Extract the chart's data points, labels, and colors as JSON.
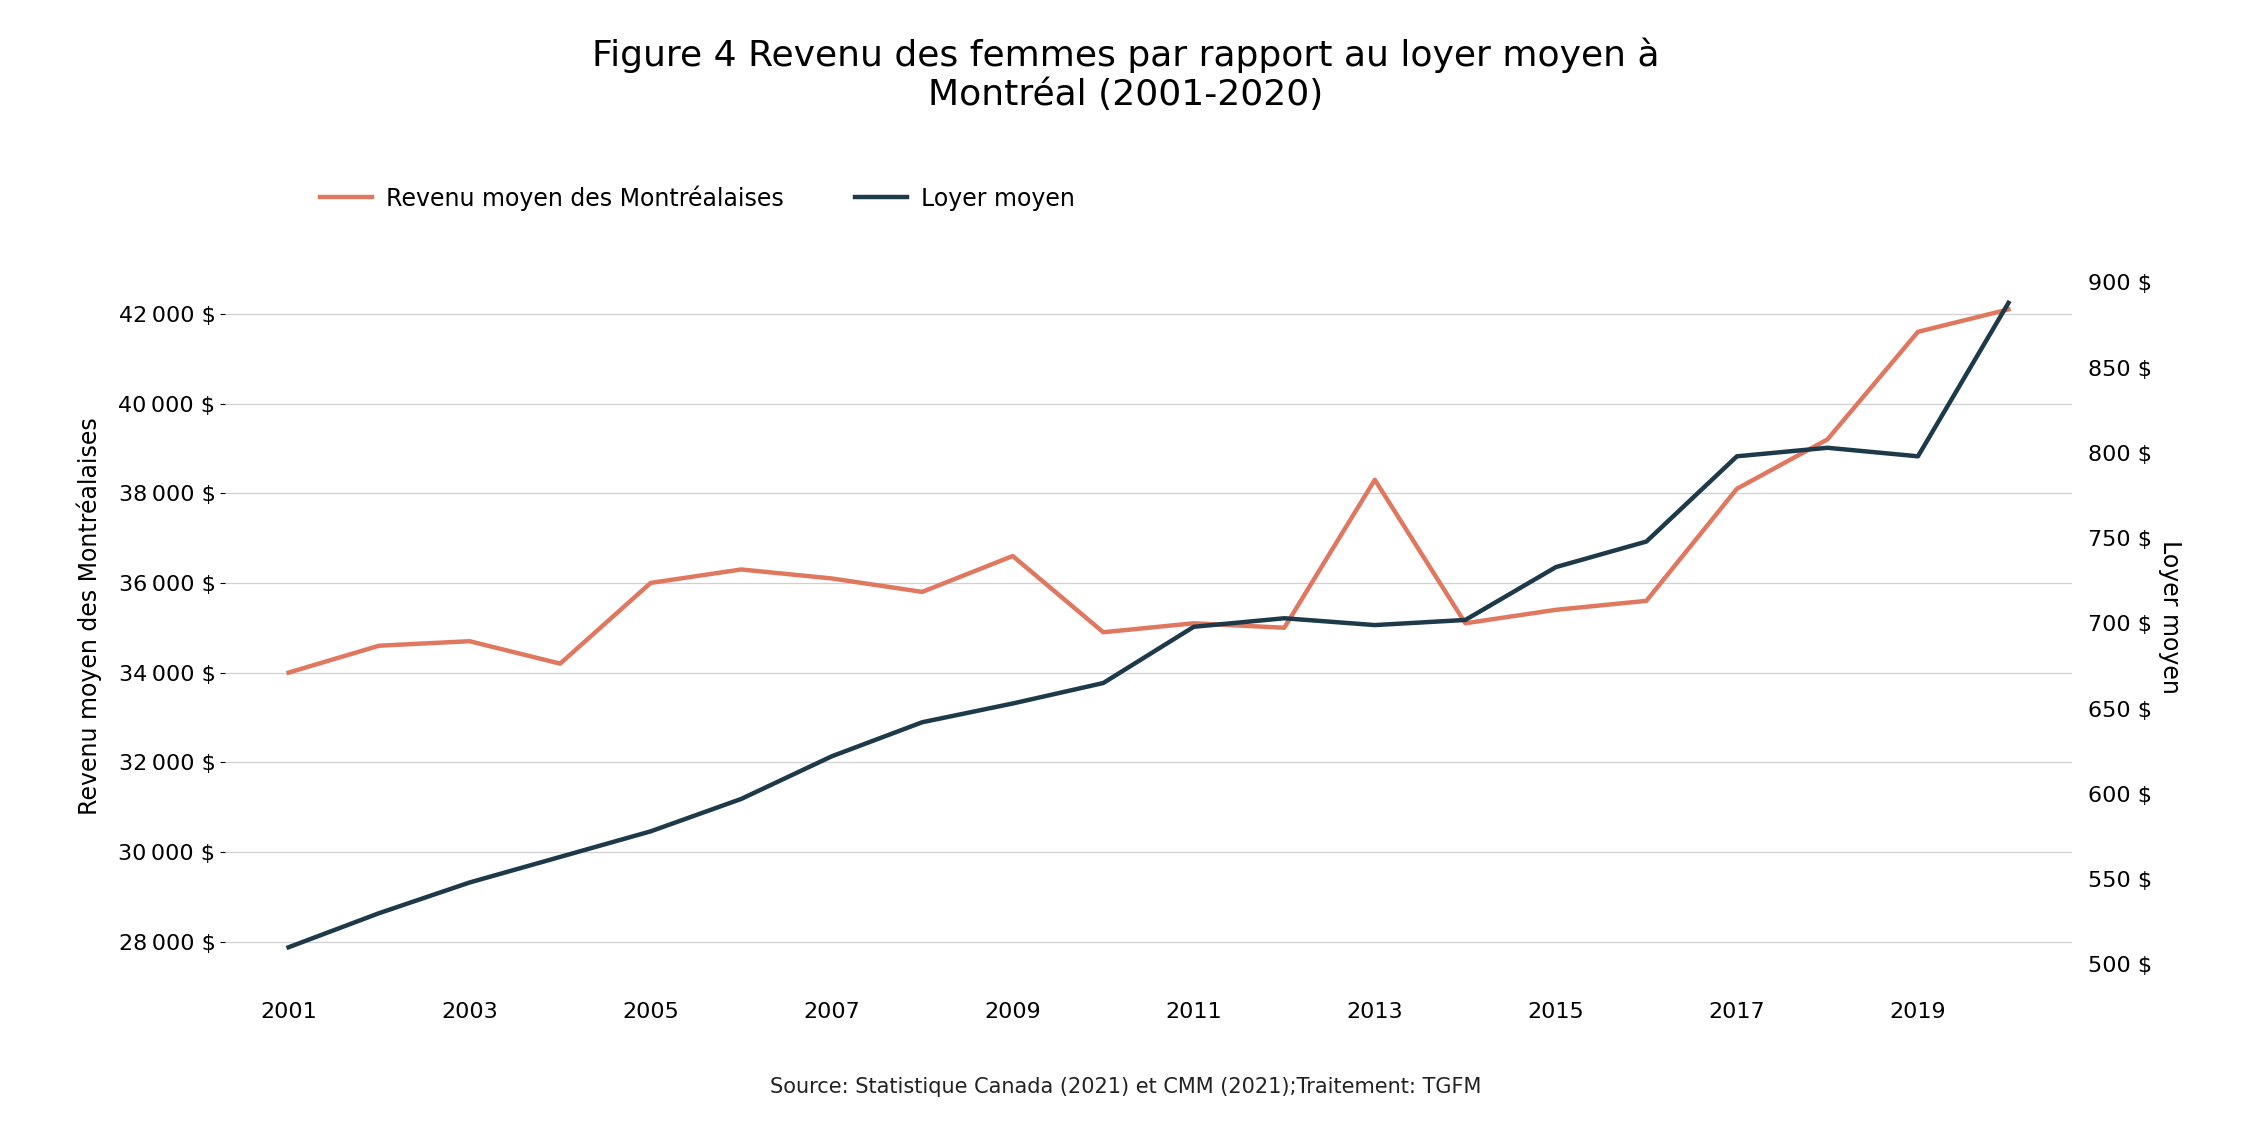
{
  "title": "Figure 4 Revenu des femmes par rapport au loyer moyen à\nMontréal (2001-2020)",
  "ylabel_left": "Revenu moyen des Montréalaises",
  "ylabel_right": "Loyer moyen",
  "source": "Source: Statistique Canada (2021) et CMM (2021);Traitement: TGFM",
  "years": [
    2001,
    2002,
    2003,
    2004,
    2005,
    2006,
    2007,
    2008,
    2009,
    2010,
    2011,
    2012,
    2013,
    2014,
    2015,
    2016,
    2017,
    2018,
    2019,
    2020
  ],
  "revenu": [
    34000,
    34600,
    34700,
    34200,
    36000,
    36300,
    36100,
    35800,
    36600,
    34900,
    35100,
    35000,
    38300,
    35100,
    35400,
    35600,
    38100,
    39200,
    41600,
    42100
  ],
  "loyer": [
    510,
    530,
    548,
    563,
    578,
    597,
    622,
    642,
    653,
    665,
    698,
    703,
    699,
    702,
    733,
    748,
    798,
    803,
    798,
    888
  ],
  "revenu_color": "#E07860",
  "loyer_color": "#1C3A4A",
  "line_width": 3.2,
  "ylim_left": [
    27000,
    43500
  ],
  "ylim_right": [
    487,
    921
  ],
  "yticks_left": [
    28000,
    30000,
    32000,
    34000,
    36000,
    38000,
    40000,
    42000
  ],
  "yticks_right": [
    500,
    550,
    600,
    650,
    700,
    750,
    800,
    850,
    900
  ],
  "xticks": [
    2001,
    2003,
    2005,
    2007,
    2009,
    2011,
    2013,
    2015,
    2017,
    2019
  ],
  "legend_revenu": "Revenu moyen des Montréalaises",
  "legend_loyer": "Loyer moyen",
  "background_color": "#ffffff",
  "title_fontsize": 26,
  "axis_label_fontsize": 17,
  "tick_fontsize": 16,
  "legend_fontsize": 17,
  "source_fontsize": 15
}
